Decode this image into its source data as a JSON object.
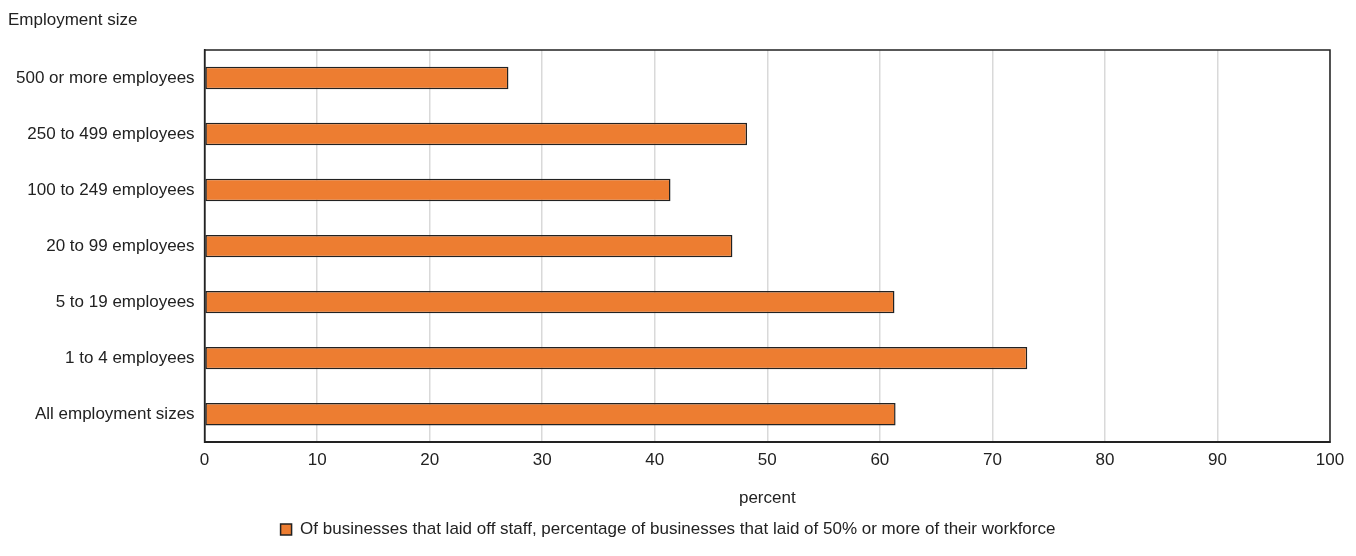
{
  "chart_data": {
    "type": "bar",
    "orientation": "horizontal",
    "ylabel": "Employment size",
    "xlabel": "percent",
    "categories": [
      "500 or more employees",
      "250 to 499 employees",
      "100 to 249 employees",
      "20 to 99 employees",
      "5 to 19 employees",
      "1 to 4 employees",
      "All employment sizes"
    ],
    "series": [
      {
        "name": "Of businesses that laid off staff, percentage of businesses that laid of 50% or more of their workforce",
        "color": "#ed7d31",
        "values": [
          27.0,
          48.2,
          41.4,
          46.9,
          61.3,
          73.1,
          61.4
        ]
      }
    ],
    "xlim": [
      0,
      100
    ],
    "xticks": [
      0,
      10,
      20,
      30,
      40,
      50,
      60,
      70,
      80,
      90,
      100
    ],
    "grid": "x",
    "legend": "bottom"
  }
}
